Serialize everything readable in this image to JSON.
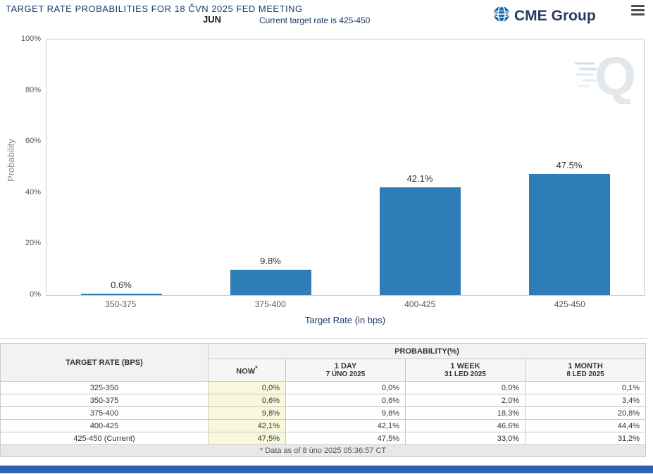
{
  "header": {
    "title": "TARGET RATE PROBABILITIES FOR 18 ČVN 2025 FED MEETING",
    "month_label": "JUN",
    "subtitle": "Current target rate is 425-450",
    "brand_cme": "CME",
    "brand_group": "Group"
  },
  "chart_data": {
    "type": "bar",
    "categories": [
      "350-375",
      "375-400",
      "400-425",
      "425-450"
    ],
    "values": [
      0.6,
      9.8,
      42.1,
      47.5
    ],
    "bar_labels": [
      "0.6%",
      "9.8%",
      "42.1%",
      "47.5%"
    ],
    "xlabel": "Target Rate (in bps)",
    "ylabel": "Probability",
    "ylim": [
      0,
      100
    ],
    "yticks": [
      0,
      20,
      40,
      60,
      80,
      100
    ],
    "ytick_labels": [
      "0%",
      "20%",
      "40%",
      "60%",
      "80%",
      "100%"
    ],
    "bar_color": "#2e7db6",
    "legend": "none",
    "grid": "off",
    "watermark_letter": "Q"
  },
  "table": {
    "rate_header": "TARGET RATE (BPS)",
    "group_header": "PROBABILITY(%)",
    "columns": [
      {
        "line1": "NOW",
        "sup": "*",
        "line2": ""
      },
      {
        "line1": "1 DAY",
        "line2": "7 ÚNO 2025"
      },
      {
        "line1": "1 WEEK",
        "line2": "31 LED 2025"
      },
      {
        "line1": "1 MONTH",
        "line2": "8 LED 2025"
      }
    ],
    "rows": [
      {
        "rate": "325-350",
        "values": [
          "0,0%",
          "0,0%",
          "0,0%",
          "0,1%"
        ]
      },
      {
        "rate": "350-375",
        "values": [
          "0,6%",
          "0,6%",
          "2,0%",
          "3,4%"
        ]
      },
      {
        "rate": "375-400",
        "values": [
          "9,8%",
          "9,8%",
          "18,3%",
          "20,8%"
        ]
      },
      {
        "rate": "400-425",
        "values": [
          "42,1%",
          "42,1%",
          "46,6%",
          "44,4%"
        ]
      },
      {
        "rate": "425-450 (Current)",
        "values": [
          "47,5%",
          "47,5%",
          "33,0%",
          "31,2%"
        ]
      }
    ],
    "footnote": "* Data as of 8 úno 2025 05:36:57 CT"
  },
  "colors": {
    "accent_navy": "#1b3a6b",
    "bar_blue": "#2e7db6",
    "now_cell_bg": "#f8f8dc",
    "bottom_bar_blue": "#2d63b0"
  }
}
